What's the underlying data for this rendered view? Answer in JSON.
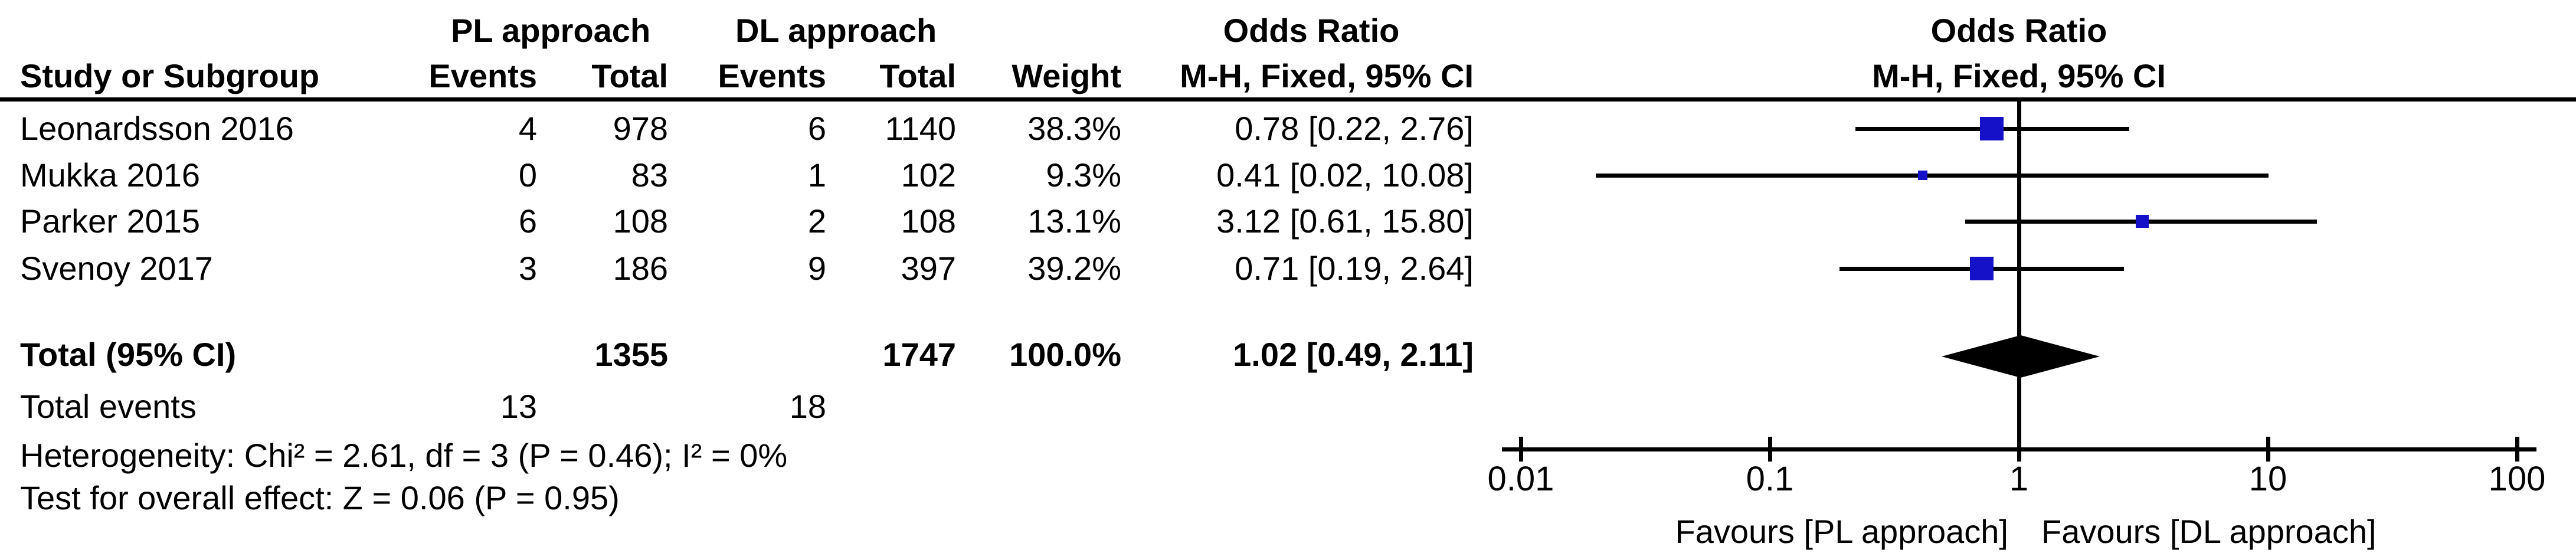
{
  "table": {
    "group_headers": {
      "pl": "PL approach",
      "dl": "DL approach",
      "or": "Odds Ratio"
    },
    "col_headers": {
      "study": "Study or Subgroup",
      "events_pl": "Events",
      "total_pl": "Total",
      "events_dl": "Events",
      "total_dl": "Total",
      "weight": "Weight",
      "or_ci": "M-H, Fixed, 95% CI"
    },
    "totals_row": {
      "label": "Total (95% CI)",
      "total_pl": "1355",
      "total_dl": "1747",
      "weight": "100.0%",
      "or_text": "1.02 [0.49, 2.11]"
    },
    "total_events_row": {
      "label": "Total events",
      "events_pl": "13",
      "events_dl": "18"
    },
    "stats": {
      "heterogeneity": "Heterogeneity: Chi² = 2.61, df = 3 (P = 0.46); I² = 0%",
      "overall_effect": "Test for overall effect: Z = 0.06 (P = 0.95)"
    }
  },
  "plot": {
    "or_header": "Odds Ratio",
    "method_header": "M-H, Fixed, 95% CI",
    "favours_left": "Favours [PL approach]",
    "favours_right": "Favours [DL approach]",
    "marker_color": "#1511C9",
    "line_color": "#000000"
  },
  "chart_data": {
    "type": "forest",
    "effect_measure": "Odds Ratio, M-H, Fixed, 95% CI",
    "x_scale": "log10",
    "xlim": [
      0.01,
      100
    ],
    "axis_ticks": [
      0.01,
      0.1,
      1,
      10,
      100
    ],
    "axis_tick_labels": [
      "0.01",
      "0.1",
      "1",
      "10",
      "100"
    ],
    "studies": [
      {
        "name": "Leonardsson 2016",
        "events_pl": "4",
        "total_pl": "978",
        "events_dl": "6",
        "total_dl": "1140",
        "weight": "38.3%",
        "weight_pct": 38.3,
        "or": 0.78,
        "ci_low": 0.22,
        "ci_high": 2.76,
        "or_text": "0.78 [0.22, 2.76]"
      },
      {
        "name": "Mukka 2016",
        "events_pl": "0",
        "total_pl": "83",
        "events_dl": "1",
        "total_dl": "102",
        "weight": "9.3%",
        "weight_pct": 9.3,
        "or": 0.41,
        "ci_low": 0.02,
        "ci_high": 10.08,
        "or_text": "0.41 [0.02, 10.08]"
      },
      {
        "name": "Parker 2015",
        "events_pl": "6",
        "total_pl": "108",
        "events_dl": "2",
        "total_dl": "108",
        "weight": "13.1%",
        "weight_pct": 13.1,
        "or": 3.12,
        "ci_low": 0.61,
        "ci_high": 15.8,
        "or_text": "3.12 [0.61, 15.80]"
      },
      {
        "name": "Svenoy 2017",
        "events_pl": "3",
        "total_pl": "186",
        "events_dl": "9",
        "total_dl": "397",
        "weight": "39.2%",
        "weight_pct": 39.2,
        "or": 0.71,
        "ci_low": 0.19,
        "ci_high": 2.64,
        "or_text": "0.71 [0.19, 2.64]"
      }
    ],
    "total": {
      "or": 1.02,
      "ci_low": 0.49,
      "ci_high": 2.11,
      "weight_pct": 100.0
    }
  }
}
